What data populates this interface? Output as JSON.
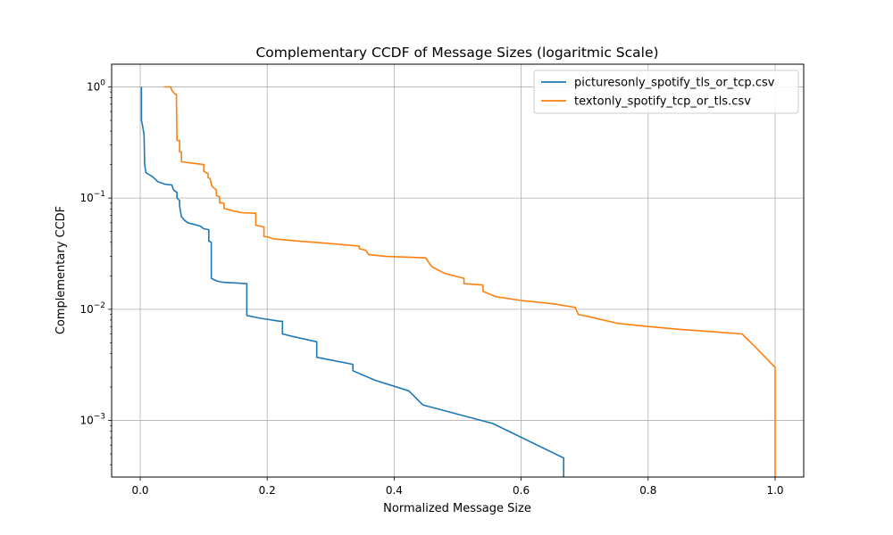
{
  "chart_data": {
    "type": "line",
    "title": "Complementary CCDF of Message Sizes (logaritmic Scale)",
    "xlabel": "Normalized Message Size",
    "ylabel": "Complementary CCDF",
    "xlim": [
      -0.045,
      1.045
    ],
    "ylim": [
      0.00031,
      1.6
    ],
    "yscale": "log",
    "grid": true,
    "legend_position": "top-right",
    "x_ticks": [
      {
        "value": 0.0,
        "label": "0.0"
      },
      {
        "value": 0.2,
        "label": "0.2"
      },
      {
        "value": 0.4,
        "label": "0.4"
      },
      {
        "value": 0.6,
        "label": "0.6"
      },
      {
        "value": 0.8,
        "label": "0.8"
      },
      {
        "value": 1.0,
        "label": "1.0"
      }
    ],
    "y_ticks": [
      {
        "value": 1,
        "base": "10",
        "exp": "0"
      },
      {
        "value": 0.1,
        "base": "10",
        "exp": "−1"
      },
      {
        "value": 0.01,
        "base": "10",
        "exp": "−2"
      },
      {
        "value": 0.001,
        "base": "10",
        "exp": "−3"
      }
    ],
    "series": [
      {
        "name": "picturesonly_spotify_tls_or_tcp.csv",
        "color": "#1f77b4",
        "points": [
          [
            0.002,
            1.0
          ],
          [
            0.002,
            0.5
          ],
          [
            0.004,
            0.44
          ],
          [
            0.006,
            0.37
          ],
          [
            0.007,
            0.2
          ],
          [
            0.009,
            0.17
          ],
          [
            0.012,
            0.165
          ],
          [
            0.02,
            0.155
          ],
          [
            0.028,
            0.14
          ],
          [
            0.04,
            0.133
          ],
          [
            0.05,
            0.131
          ],
          [
            0.052,
            0.12
          ],
          [
            0.055,
            0.115
          ],
          [
            0.058,
            0.113
          ],
          [
            0.058,
            0.1
          ],
          [
            0.062,
            0.095
          ],
          [
            0.062,
            0.085
          ],
          [
            0.065,
            0.068
          ],
          [
            0.07,
            0.063
          ],
          [
            0.075,
            0.06
          ],
          [
            0.085,
            0.058
          ],
          [
            0.095,
            0.056
          ],
          [
            0.1,
            0.053
          ],
          [
            0.108,
            0.052
          ],
          [
            0.108,
            0.041
          ],
          [
            0.112,
            0.04
          ],
          [
            0.112,
            0.019
          ],
          [
            0.12,
            0.018
          ],
          [
            0.13,
            0.0175
          ],
          [
            0.168,
            0.017
          ],
          [
            0.168,
            0.0088
          ],
          [
            0.19,
            0.0083
          ],
          [
            0.22,
            0.0078
          ],
          [
            0.224,
            0.0078
          ],
          [
            0.224,
            0.006
          ],
          [
            0.24,
            0.0057
          ],
          [
            0.278,
            0.0051
          ],
          [
            0.278,
            0.0037
          ],
          [
            0.335,
            0.0032
          ],
          [
            0.335,
            0.0028
          ],
          [
            0.37,
            0.0023
          ],
          [
            0.423,
            0.00185
          ],
          [
            0.445,
            0.00138
          ],
          [
            0.555,
            0.00094
          ],
          [
            0.667,
            0.00046
          ],
          [
            0.667,
            0.00031
          ]
        ]
      },
      {
        "name": "textonly_spotify_tcp_or_tls.csv",
        "color": "#ff7f0e",
        "points": [
          [
            0.037,
            1.0
          ],
          [
            0.048,
            1.0
          ],
          [
            0.05,
            0.93
          ],
          [
            0.055,
            0.86
          ],
          [
            0.057,
            0.86
          ],
          [
            0.058,
            0.33
          ],
          [
            0.062,
            0.33
          ],
          [
            0.062,
            0.26
          ],
          [
            0.065,
            0.26
          ],
          [
            0.065,
            0.212
          ],
          [
            0.08,
            0.207
          ],
          [
            0.1,
            0.2
          ],
          [
            0.1,
            0.175
          ],
          [
            0.107,
            0.165
          ],
          [
            0.107,
            0.152
          ],
          [
            0.11,
            0.15
          ],
          [
            0.113,
            0.128
          ],
          [
            0.12,
            0.118
          ],
          [
            0.12,
            0.105
          ],
          [
            0.125,
            0.103
          ],
          [
            0.125,
            0.091
          ],
          [
            0.132,
            0.09
          ],
          [
            0.132,
            0.081
          ],
          [
            0.145,
            0.077
          ],
          [
            0.16,
            0.074
          ],
          [
            0.182,
            0.073
          ],
          [
            0.182,
            0.057
          ],
          [
            0.195,
            0.055
          ],
          [
            0.195,
            0.045
          ],
          [
            0.2,
            0.045
          ],
          [
            0.21,
            0.043
          ],
          [
            0.25,
            0.041
          ],
          [
            0.3,
            0.039
          ],
          [
            0.345,
            0.037
          ],
          [
            0.345,
            0.035
          ],
          [
            0.355,
            0.034
          ],
          [
            0.36,
            0.031
          ],
          [
            0.385,
            0.03
          ],
          [
            0.45,
            0.029
          ],
          [
            0.455,
            0.026
          ],
          [
            0.46,
            0.024
          ],
          [
            0.48,
            0.021
          ],
          [
            0.51,
            0.019
          ],
          [
            0.51,
            0.017
          ],
          [
            0.54,
            0.0165
          ],
          [
            0.54,
            0.0145
          ],
          [
            0.56,
            0.013
          ],
          [
            0.6,
            0.012
          ],
          [
            0.65,
            0.0112
          ],
          [
            0.685,
            0.0104
          ],
          [
            0.69,
            0.009
          ],
          [
            0.71,
            0.0085
          ],
          [
            0.75,
            0.0075
          ],
          [
            0.8,
            0.007
          ],
          [
            0.85,
            0.0066
          ],
          [
            0.9,
            0.0063
          ],
          [
            0.948,
            0.006
          ],
          [
            0.97,
            0.0045
          ],
          [
            1.0,
            0.003
          ],
          [
            1.0,
            0.00031
          ]
        ]
      }
    ]
  }
}
